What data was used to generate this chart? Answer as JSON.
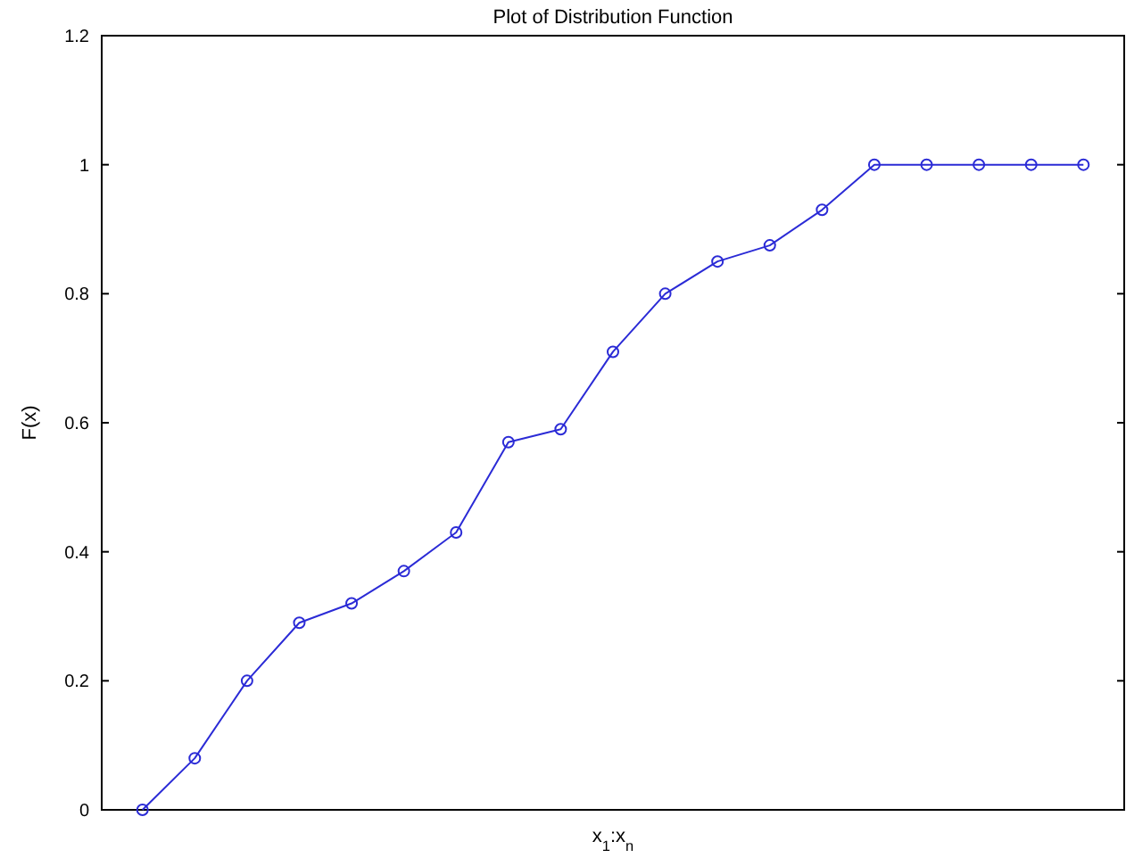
{
  "chart_data": {
    "type": "line",
    "title": "Plot of Distribution Function",
    "xlabel": "x$_{1}$:x$_{n}$",
    "ylabel": "F(x)",
    "categories": [
      null,
      null,
      null,
      null,
      null,
      null,
      null,
      null,
      null,
      null,
      null,
      null,
      null,
      null,
      null,
      null,
      null,
      null,
      null
    ],
    "series": [
      {
        "color": "#2b2bd6",
        "values": [
          0.0,
          0.08,
          0.2,
          0.29,
          0.32,
          0.37,
          0.43,
          0.57,
          0.59,
          0.71,
          0.8,
          0.85,
          0.875,
          0.93,
          1,
          1,
          1,
          1,
          1
        ]
      }
    ],
    "ylim": [
      0,
      1.2
    ],
    "yticks": [
      0,
      0.2,
      0.4,
      0.6,
      0.8,
      1,
      1.2
    ],
    "tick_labels": "y",
    "marker": "circle",
    "line_style": "solid"
  }
}
